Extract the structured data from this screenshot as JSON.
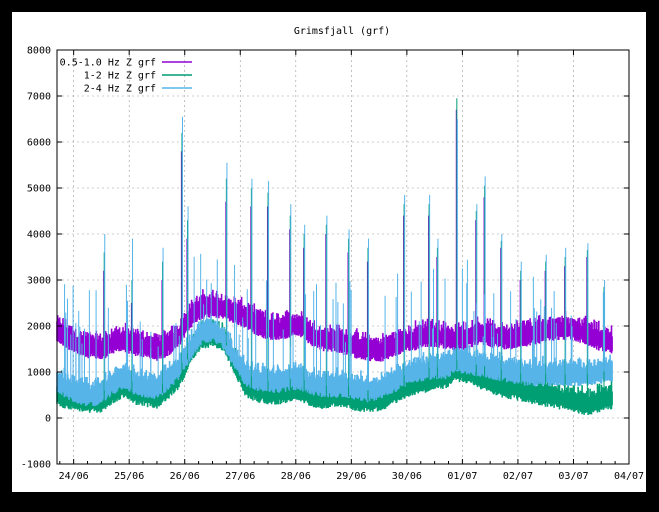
{
  "chart_data": {
    "type": "line",
    "title": "Grimsfjall (grf)",
    "xlabel": "",
    "ylabel": "",
    "ylim": [
      -1000,
      8000
    ],
    "yticks": [
      -1000,
      0,
      1000,
      2000,
      3000,
      4000,
      5000,
      6000,
      7000,
      8000
    ],
    "x_unit": "days",
    "xlim": [
      23.7,
      34.0
    ],
    "categories": [
      "24/06",
      "25/06",
      "26/06",
      "27/06",
      "28/06",
      "29/06",
      "30/06",
      "01/07",
      "02/07",
      "03/07",
      "04/07"
    ],
    "category_positions": [
      24,
      25,
      26,
      27,
      28,
      29,
      30,
      31,
      32,
      33,
      34
    ],
    "grid": true,
    "legend_position": "top-left",
    "series": [
      {
        "name": "0.5-1.0 Hz Z grf",
        "color": "#9400d3",
        "x": [
          23.7,
          23.9,
          24.1,
          24.3,
          24.5,
          24.7,
          24.9,
          25.1,
          25.3,
          25.5,
          25.7,
          25.9,
          26.1,
          26.3,
          26.5,
          26.7,
          26.9,
          27.1,
          27.3,
          27.5,
          27.7,
          27.9,
          28.1,
          28.3,
          28.5,
          28.7,
          28.9,
          29.1,
          29.3,
          29.5,
          29.7,
          29.9,
          30.1,
          30.3,
          30.5,
          30.7,
          30.9,
          31.1,
          31.3,
          31.5,
          31.7,
          31.9,
          32.1,
          32.3,
          32.5,
          32.7,
          32.9,
          33.1,
          33.3,
          33.5,
          33.7
        ],
        "values": [
          1900,
          1750,
          1600,
          1550,
          1500,
          1650,
          1700,
          1600,
          1550,
          1500,
          1600,
          1800,
          2200,
          2400,
          2450,
          2400,
          2300,
          2200,
          2050,
          1950,
          1950,
          2000,
          2000,
          1800,
          1700,
          1700,
          1600,
          1550,
          1500,
          1450,
          1550,
          1650,
          1700,
          1800,
          1800,
          1750,
          1700,
          1750,
          1850,
          1800,
          1750,
          1750,
          1800,
          1850,
          1900,
          1950,
          1950,
          1900,
          1800,
          1700,
          1650
        ]
      },
      {
        "name": "1-2 Hz Z grf",
        "color": "#009e73",
        "x": [
          23.7,
          23.9,
          24.1,
          24.3,
          24.5,
          24.7,
          24.9,
          25.1,
          25.3,
          25.5,
          25.7,
          25.9,
          26.1,
          26.3,
          26.5,
          26.7,
          26.9,
          27.1,
          27.3,
          27.5,
          27.7,
          27.9,
          28.1,
          28.3,
          28.5,
          28.7,
          28.9,
          29.1,
          29.3,
          29.5,
          29.7,
          29.9,
          30.1,
          30.3,
          30.5,
          30.7,
          30.9,
          31.1,
          31.3,
          31.5,
          31.7,
          31.9,
          32.1,
          32.3,
          32.5,
          32.7,
          32.9,
          33.1,
          33.3,
          33.5,
          33.7
        ],
        "values": [
          500,
          450,
          400,
          350,
          380,
          550,
          700,
          550,
          500,
          450,
          650,
          900,
          1400,
          1750,
          1800,
          1700,
          1200,
          700,
          600,
          550,
          550,
          600,
          600,
          500,
          450,
          500,
          480,
          400,
          380,
          400,
          500,
          650,
          750,
          800,
          850,
          900,
          1050,
          1000,
          900,
          800,
          700,
          650,
          600,
          550,
          500,
          450,
          400,
          350,
          300,
          400,
          450
        ]
      },
      {
        "name": "2-4 Hz Z grf",
        "color": "#56b4e9",
        "x": [
          23.7,
          23.9,
          24.1,
          24.3,
          24.5,
          24.7,
          24.9,
          25.1,
          25.3,
          25.5,
          25.7,
          25.9,
          26.1,
          26.3,
          26.5,
          26.7,
          26.9,
          27.1,
          27.3,
          27.5,
          27.7,
          27.9,
          28.1,
          28.3,
          28.5,
          28.7,
          28.9,
          29.1,
          29.3,
          29.5,
          29.7,
          29.9,
          30.1,
          30.3,
          30.5,
          30.7,
          30.9,
          31.1,
          31.3,
          31.5,
          31.7,
          31.9,
          32.1,
          32.3,
          32.5,
          32.7,
          32.9,
          33.1,
          33.3,
          33.5,
          33.7
        ],
        "values": [
          800,
          650,
          550,
          500,
          550,
          750,
          900,
          750,
          700,
          650,
          850,
          1100,
          1500,
          1850,
          1900,
          1750,
          1300,
          950,
          850,
          800,
          800,
          850,
          850,
          750,
          700,
          700,
          700,
          650,
          600,
          650,
          750,
          900,
          1000,
          1050,
          1100,
          1100,
          1250,
          1200,
          1150,
          1100,
          1050,
          1000,
          950,
          950,
          950,
          950,
          950,
          950,
          950,
          1000,
          1050
        ]
      }
    ],
    "spikes": [
      {
        "x": 24.55,
        "values": [
          3200,
          3600,
          4000
        ]
      },
      {
        "x": 25.05,
        "values": [
          2500,
          3000,
          3900
        ]
      },
      {
        "x": 25.6,
        "values": [
          3000,
          3400,
          3700
        ]
      },
      {
        "x": 25.95,
        "values": [
          5800,
          6200,
          6550
        ]
      },
      {
        "x": 26.05,
        "values": [
          3900,
          4300,
          4600
        ]
      },
      {
        "x": 26.75,
        "values": [
          4700,
          5200,
          5550
        ]
      },
      {
        "x": 27.2,
        "values": [
          4600,
          5000,
          5200
        ]
      },
      {
        "x": 27.5,
        "values": [
          4600,
          4900,
          5150
        ]
      },
      {
        "x": 27.9,
        "values": [
          4100,
          4400,
          4650
        ]
      },
      {
        "x": 28.15,
        "values": [
          3700,
          4000,
          4200
        ]
      },
      {
        "x": 28.55,
        "values": [
          4000,
          4200,
          4400
        ]
      },
      {
        "x": 28.95,
        "values": [
          3600,
          3900,
          4100
        ]
      },
      {
        "x": 29.3,
        "values": [
          3400,
          3700,
          3900
        ]
      },
      {
        "x": 29.95,
        "values": [
          4400,
          4650,
          4850
        ]
      },
      {
        "x": 30.4,
        "values": [
          4400,
          4650,
          4850
        ]
      },
      {
        "x": 30.55,
        "values": [
          3500,
          3700,
          3900
        ]
      },
      {
        "x": 30.9,
        "values": [
          6700,
          6950,
          6500
        ]
      },
      {
        "x": 31.25,
        "values": [
          4300,
          4500,
          4650
        ]
      },
      {
        "x": 31.4,
        "values": [
          4800,
          5050,
          5250
        ]
      },
      {
        "x": 31.7,
        "values": [
          3700,
          3850,
          4000
        ]
      },
      {
        "x": 32.05,
        "values": [
          3000,
          3200,
          3400
        ]
      },
      {
        "x": 32.5,
        "values": [
          3200,
          3400,
          3550
        ]
      },
      {
        "x": 32.85,
        "values": [
          3300,
          3500,
          3700
        ]
      },
      {
        "x": 33.25,
        "values": [
          3500,
          3650,
          3800
        ]
      },
      {
        "x": 33.55,
        "values": [
          2700,
          2850,
          3000
        ]
      }
    ]
  }
}
